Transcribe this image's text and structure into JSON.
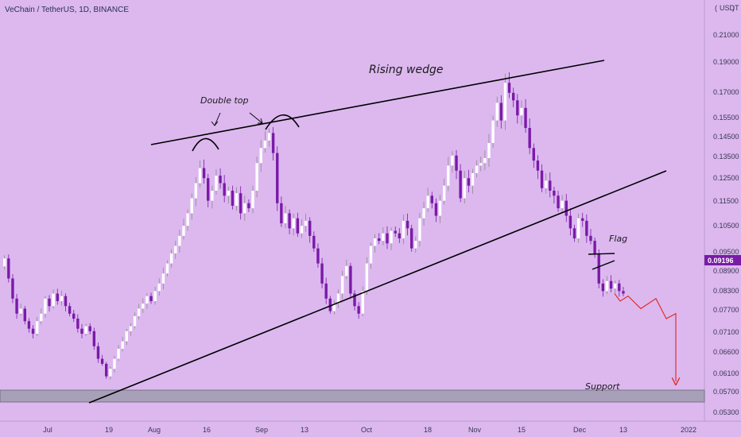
{
  "header": {
    "title": "VeChain / TetherUS, 1D, BINANCE",
    "currency": "USDT"
  },
  "colors": {
    "background": "#dcb8ef",
    "bull_candle": "#ffffff",
    "bear_candle": "#7a1aa8",
    "trendline": "#000000",
    "projection": "#e0302a",
    "support_zone": "#a7a0b8",
    "price_badge": "#7a1aa8"
  },
  "chart_data": {
    "type": "candlestick",
    "symbol": "VeChain / TetherUS",
    "interval": "1D",
    "exchange": "BINANCE",
    "price_axis_label": "USDT",
    "y_ticks": [
      "0.21000",
      "0.19000",
      "0.17000",
      "0.15500",
      "0.14500",
      "0.13500",
      "0.12500",
      "0.11500",
      "0.10500",
      "0.09500",
      "0.08900",
      "0.08300",
      "0.07700",
      "0.07100",
      "0.06600",
      "0.06100",
      "0.05700",
      "0.05300"
    ],
    "x_ticks": [
      "Jul",
      "19",
      "Aug",
      "16",
      "Sep",
      "13",
      "Oct",
      "18",
      "Nov",
      "15",
      "Dec",
      "13",
      "2022"
    ],
    "last_price": "0.09196",
    "series_close": [
      0.106,
      0.098,
      0.09,
      0.084,
      0.086,
      0.081,
      0.078,
      0.076,
      0.081,
      0.084,
      0.09,
      0.087,
      0.092,
      0.089,
      0.091,
      0.087,
      0.084,
      0.082,
      0.078,
      0.076,
      0.079,
      0.077,
      0.071,
      0.066,
      0.064,
      0.059,
      0.062,
      0.066,
      0.07,
      0.073,
      0.077,
      0.079,
      0.083,
      0.086,
      0.088,
      0.091,
      0.089,
      0.093,
      0.096,
      0.1,
      0.104,
      0.108,
      0.111,
      0.115,
      0.119,
      0.124,
      0.13,
      0.136,
      0.142,
      0.138,
      0.129,
      0.133,
      0.139,
      0.136,
      0.131,
      0.133,
      0.127,
      0.132,
      0.124,
      0.128,
      0.126,
      0.133,
      0.144,
      0.15,
      0.153,
      0.156,
      0.148,
      0.128,
      0.12,
      0.124,
      0.118,
      0.122,
      0.116,
      0.119,
      0.121,
      0.115,
      0.11,
      0.104,
      0.096,
      0.09,
      0.085,
      0.088,
      0.092,
      0.099,
      0.103,
      0.092,
      0.087,
      0.084,
      0.093,
      0.104,
      0.111,
      0.114,
      0.113,
      0.116,
      0.112,
      0.117,
      0.116,
      0.114,
      0.121,
      0.118,
      0.11,
      0.113,
      0.122,
      0.126,
      0.131,
      0.128,
      0.123,
      0.129,
      0.135,
      0.143,
      0.147,
      0.141,
      0.13,
      0.138,
      0.135,
      0.14,
      0.143,
      0.144,
      0.146,
      0.152,
      0.161,
      0.168,
      0.161,
      0.176,
      0.172,
      0.169,
      0.163,
      0.166,
      0.158,
      0.15,
      0.145,
      0.141,
      0.134,
      0.137,
      0.133,
      0.131,
      0.126,
      0.129,
      0.123,
      0.118,
      0.114,
      0.122,
      0.121,
      0.115,
      0.113,
      0.108,
      0.096,
      0.093,
      0.097,
      0.094,
      0.096,
      0.093,
      0.092
    ],
    "projection_path": [
      0.092,
      0.089,
      0.091,
      0.086,
      0.09,
      0.082,
      0.084,
      0.057
    ],
    "annotations": [
      "Rising wedge",
      "Double top",
      "Flag",
      "Support"
    ],
    "support_range": [
      0.0555,
      0.0575
    ]
  }
}
